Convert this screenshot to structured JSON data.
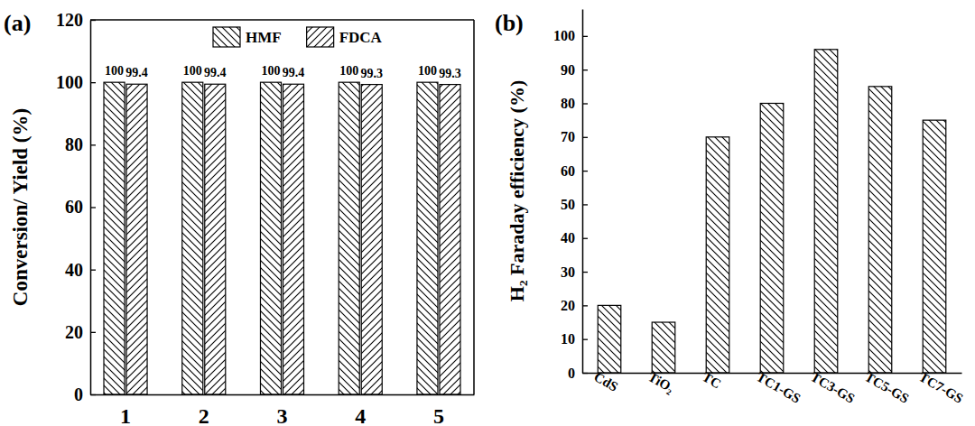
{
  "chart_data": [
    {
      "type": "bar",
      "title": "(a)",
      "y_label": "Conversion/ Yield (%)",
      "categories": [
        "1",
        "2",
        "3",
        "4",
        "5"
      ],
      "series": [
        {
          "name": "HMF",
          "color": "#000000",
          "values": [
            100,
            100,
            100,
            100,
            100
          ]
        },
        {
          "name": "FDCA",
          "color": "#000000",
          "values": [
            99.4,
            99.4,
            99.4,
            99.3,
            99.3
          ]
        }
      ],
      "ylim": [
        0,
        120
      ],
      "yticks": [
        0,
        20,
        40,
        60,
        80,
        100,
        120
      ],
      "legend": "top",
      "data_labels": true
    },
    {
      "type": "bar",
      "title": "(b)",
      "y_label": "H₂ Faraday efficiency (%)",
      "categories": [
        "CdS",
        "TiO₂",
        "TC",
        "TC1-GS",
        "TC3-GS",
        "TC5-GS",
        "TC7-GS"
      ],
      "values": [
        20,
        15,
        70,
        80,
        96,
        85,
        75
      ],
      "color": "#000000",
      "ylim": [
        0,
        108
      ],
      "yticks": [
        0,
        10,
        20,
        30,
        40,
        50,
        60,
        70,
        80,
        90,
        100
      ]
    }
  ]
}
